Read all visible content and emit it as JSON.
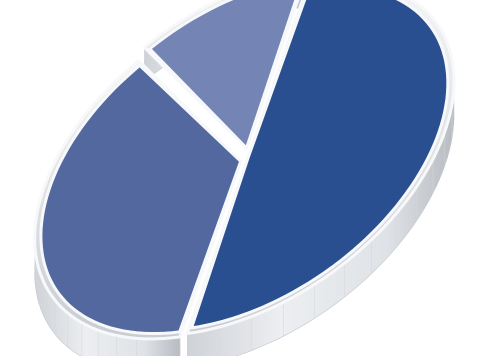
{
  "chart_data": {
    "type": "pie",
    "title": "",
    "style": "3d-exploded",
    "slices": [
      {
        "value": 50,
        "color": "#2a4f91"
      },
      {
        "value": 37,
        "color": "#52689f"
      },
      {
        "value": 13,
        "color": "#7384b5"
      }
    ]
  },
  "colors": {
    "rim_light": "#f2f4f7",
    "rim_mid": "#d8dbe0",
    "rim_dark": "#b8bcc4",
    "side_light": "#e7e9ec",
    "side_dark": "#b9bcc1",
    "separator": "#f7f8fa"
  }
}
